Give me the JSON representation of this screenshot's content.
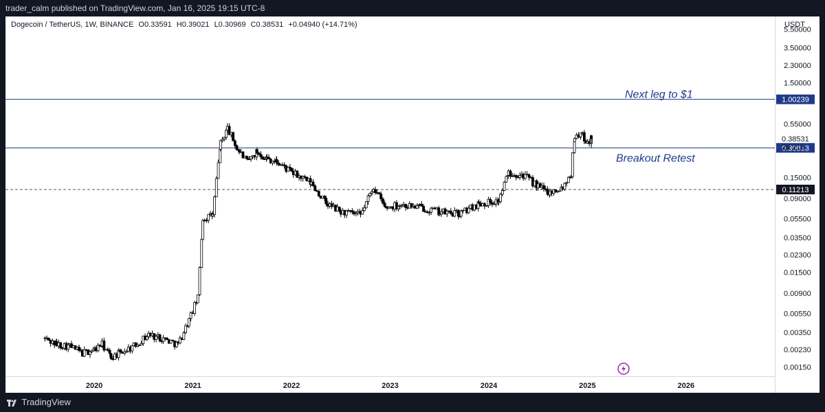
{
  "header": {
    "publish_line": "trader_calm published on TradingView.com, Jan 16, 2025 19:15 UTC-8"
  },
  "footer": {
    "brand": "TradingView"
  },
  "legend": {
    "symbol": "Dogecoin / TetherUS, 1W, BINANCE",
    "open": "O0.33591",
    "high": "H0.39021",
    "low": "L0.30969",
    "close": "C0.38531",
    "change": "+0.04940 (+14.71%)"
  },
  "price_axis": {
    "currency": "USDT",
    "countdown": "2d 21h"
  },
  "colors": {
    "background": "#ffffff",
    "frame": "#131722",
    "candle": "#000000",
    "level_line": "#1e3a8a",
    "label_bg": "#1e3a8a",
    "dashed_line": "#555555",
    "annotation": "#1e3a8a",
    "lightning": "#9c27b0"
  },
  "chart_data": {
    "type": "candlestick",
    "title": "",
    "xlabel": "",
    "ylabel": "USDT",
    "y_scale": "log",
    "ylim": [
      0.0012,
      7.5
    ],
    "xlim": [
      2019.1,
      2026.9
    ],
    "x_ticks": [
      "2020",
      "2021",
      "2022",
      "2023",
      "2024",
      "2025",
      "2026"
    ],
    "y_ticks": [
      "5.50000",
      "3.50000",
      "2.30000",
      "1.50000",
      "0.55000",
      "0.15000",
      "0.09000",
      "0.05500",
      "0.03500",
      "0.02300",
      "0.01500",
      "0.00900",
      "0.00550",
      "0.00350",
      "0.00230",
      "0.00150"
    ],
    "series": [
      {
        "values": [
          {
            "t": "2019.50",
            "c": 0.003
          },
          {
            "t": "2019.62",
            "c": 0.0026
          },
          {
            "t": "2019.75",
            "c": 0.0025
          },
          {
            "t": "2019.88",
            "c": 0.0021
          },
          {
            "t": "2020.00",
            "c": 0.0023
          },
          {
            "t": "2020.08",
            "c": 0.0026
          },
          {
            "t": "2020.17",
            "c": 0.0019
          },
          {
            "t": "2020.25",
            "c": 0.0021
          },
          {
            "t": "2020.40",
            "c": 0.0025
          },
          {
            "t": "2020.55",
            "c": 0.0033
          },
          {
            "t": "2020.70",
            "c": 0.003
          },
          {
            "t": "2020.85",
            "c": 0.0026
          },
          {
            "t": "2020.96",
            "c": 0.0047
          },
          {
            "t": "2021.05",
            "c": 0.008
          },
          {
            "t": "2021.10",
            "c": 0.055
          },
          {
            "t": "2021.20",
            "c": 0.06
          },
          {
            "t": "2021.28",
            "c": 0.34
          },
          {
            "t": "2021.35",
            "c": 0.5
          },
          {
            "t": "2021.45",
            "c": 0.3
          },
          {
            "t": "2021.55",
            "c": 0.22
          },
          {
            "t": "2021.65",
            "c": 0.28
          },
          {
            "t": "2021.75",
            "c": 0.24
          },
          {
            "t": "2021.85",
            "c": 0.22
          },
          {
            "t": "2022.00",
            "c": 0.17
          },
          {
            "t": "2022.20",
            "c": 0.13
          },
          {
            "t": "2022.35",
            "c": 0.08
          },
          {
            "t": "2022.50",
            "c": 0.065
          },
          {
            "t": "2022.70",
            "c": 0.06
          },
          {
            "t": "2022.83",
            "c": 0.12
          },
          {
            "t": "2022.95",
            "c": 0.072
          },
          {
            "t": "2023.10",
            "c": 0.078
          },
          {
            "t": "2023.30",
            "c": 0.073
          },
          {
            "t": "2023.50",
            "c": 0.065
          },
          {
            "t": "2023.70",
            "c": 0.062
          },
          {
            "t": "2023.90",
            "c": 0.08
          },
          {
            "t": "2024.10",
            "c": 0.085
          },
          {
            "t": "2024.20",
            "c": 0.17
          },
          {
            "t": "2024.35",
            "c": 0.16
          },
          {
            "t": "2024.50",
            "c": 0.12
          },
          {
            "t": "2024.62",
            "c": 0.105
          },
          {
            "t": "2024.75",
            "c": 0.12
          },
          {
            "t": "2024.83",
            "c": 0.165
          },
          {
            "t": "2024.87",
            "c": 0.4
          },
          {
            "t": "2024.93",
            "c": 0.43
          },
          {
            "t": "2025.00",
            "c": 0.36
          },
          {
            "t": "2025.04",
            "c": 0.3853
          }
        ]
      }
    ],
    "levels": [
      {
        "value": 1.00239,
        "label": "1.00239",
        "style": "solid"
      },
      {
        "value": 0.30833,
        "label": "0.30833",
        "style": "solid"
      },
      {
        "value": 0.11213,
        "label": "0.11213",
        "style": "dashed"
      }
    ],
    "current_price": "0.38531",
    "annotations": [
      "Next leg to $1",
      "Breakout Retest"
    ]
  }
}
